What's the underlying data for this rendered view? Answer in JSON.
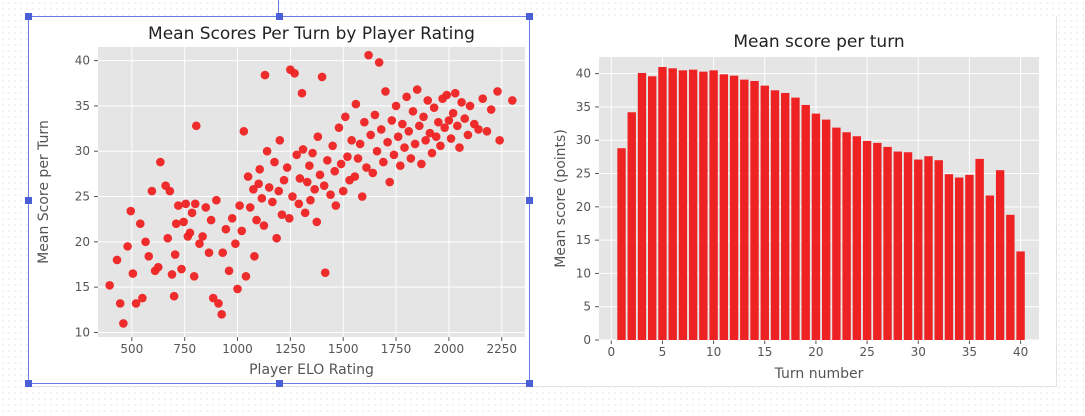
{
  "chart_data": [
    {
      "type": "scatter",
      "title": "Mean Scores Per Turn by Player Rating",
      "xlabel": "Player ELO Rating",
      "ylabel": "Mean Score per Turn",
      "xlim": [
        340,
        2360
      ],
      "ylim": [
        9.5,
        41.5
      ],
      "xticks": [
        500,
        750,
        1000,
        1250,
        1500,
        1750,
        2000,
        2250
      ],
      "yticks": [
        10,
        15,
        20,
        25,
        30,
        35,
        40
      ],
      "grid": true,
      "color": "#ee2222",
      "points": [
        [
          395,
          15.2
        ],
        [
          430,
          18.0
        ],
        [
          445,
          13.2
        ],
        [
          460,
          11.0
        ],
        [
          480,
          19.5
        ],
        [
          495,
          23.4
        ],
        [
          505,
          16.5
        ],
        [
          520,
          13.2
        ],
        [
          540,
          22.0
        ],
        [
          550,
          13.8
        ],
        [
          565,
          20.0
        ],
        [
          580,
          18.4
        ],
        [
          595,
          25.6
        ],
        [
          610,
          16.8
        ],
        [
          625,
          17.2
        ],
        [
          635,
          28.8
        ],
        [
          660,
          26.2
        ],
        [
          670,
          20.4
        ],
        [
          680,
          25.6
        ],
        [
          690,
          16.4
        ],
        [
          700,
          14.0
        ],
        [
          705,
          18.6
        ],
        [
          710,
          22.0
        ],
        [
          720,
          24.0
        ],
        [
          735,
          17.0
        ],
        [
          745,
          22.2
        ],
        [
          755,
          24.2
        ],
        [
          765,
          20.6
        ],
        [
          775,
          21.0
        ],
        [
          785,
          23.2
        ],
        [
          795,
          16.2
        ],
        [
          800,
          24.2
        ],
        [
          805,
          32.8
        ],
        [
          820,
          19.8
        ],
        [
          835,
          20.6
        ],
        [
          850,
          23.8
        ],
        [
          865,
          18.8
        ],
        [
          875,
          22.4
        ],
        [
          885,
          13.8
        ],
        [
          900,
          24.6
        ],
        [
          910,
          13.2
        ],
        [
          925,
          12.0
        ],
        [
          930,
          18.8
        ],
        [
          945,
          21.4
        ],
        [
          960,
          16.8
        ],
        [
          975,
          22.6
        ],
        [
          990,
          19.8
        ],
        [
          1000,
          14.8
        ],
        [
          1010,
          24.0
        ],
        [
          1020,
          21.2
        ],
        [
          1030,
          32.2
        ],
        [
          1040,
          16.2
        ],
        [
          1050,
          27.2
        ],
        [
          1060,
          23.8
        ],
        [
          1075,
          25.8
        ],
        [
          1080,
          18.4
        ],
        [
          1090,
          22.4
        ],
        [
          1100,
          26.4
        ],
        [
          1105,
          28.0
        ],
        [
          1115,
          24.8
        ],
        [
          1125,
          21.8
        ],
        [
          1130,
          38.4
        ],
        [
          1140,
          30.0
        ],
        [
          1150,
          26.0
        ],
        [
          1165,
          24.4
        ],
        [
          1175,
          28.8
        ],
        [
          1185,
          20.4
        ],
        [
          1195,
          25.6
        ],
        [
          1200,
          31.2
        ],
        [
          1210,
          23.0
        ],
        [
          1220,
          26.8
        ],
        [
          1235,
          28.2
        ],
        [
          1245,
          22.6
        ],
        [
          1250,
          39.0
        ],
        [
          1260,
          25.0
        ],
        [
          1270,
          38.6
        ],
        [
          1280,
          29.6
        ],
        [
          1290,
          24.2
        ],
        [
          1295,
          27.0
        ],
        [
          1305,
          36.4
        ],
        [
          1310,
          30.2
        ],
        [
          1320,
          23.2
        ],
        [
          1330,
          26.6
        ],
        [
          1340,
          28.4
        ],
        [
          1345,
          24.6
        ],
        [
          1355,
          29.8
        ],
        [
          1365,
          25.8
        ],
        [
          1375,
          22.2
        ],
        [
          1380,
          31.6
        ],
        [
          1390,
          27.4
        ],
        [
          1400,
          38.2
        ],
        [
          1410,
          26.2
        ],
        [
          1415,
          16.6
        ],
        [
          1425,
          29.0
        ],
        [
          1440,
          25.2
        ],
        [
          1450,
          30.6
        ],
        [
          1460,
          27.8
        ],
        [
          1465,
          24.0
        ],
        [
          1480,
          32.6
        ],
        [
          1490,
          28.6
        ],
        [
          1500,
          25.6
        ],
        [
          1510,
          33.8
        ],
        [
          1520,
          29.4
        ],
        [
          1530,
          26.8
        ],
        [
          1540,
          31.2
        ],
        [
          1555,
          27.2
        ],
        [
          1560,
          35.2
        ],
        [
          1570,
          29.2
        ],
        [
          1580,
          30.8
        ],
        [
          1590,
          25.0
        ],
        [
          1600,
          33.2
        ],
        [
          1610,
          28.2
        ],
        [
          1620,
          40.6
        ],
        [
          1630,
          31.8
        ],
        [
          1640,
          27.6
        ],
        [
          1650,
          34.0
        ],
        [
          1660,
          30.0
        ],
        [
          1670,
          39.8
        ],
        [
          1680,
          32.4
        ],
        [
          1690,
          28.8
        ],
        [
          1700,
          36.6
        ],
        [
          1710,
          31.0
        ],
        [
          1720,
          26.6
        ],
        [
          1730,
          33.4
        ],
        [
          1740,
          29.6
        ],
        [
          1750,
          35.0
        ],
        [
          1760,
          31.6
        ],
        [
          1770,
          28.4
        ],
        [
          1780,
          33.0
        ],
        [
          1790,
          30.4
        ],
        [
          1800,
          36.0
        ],
        [
          1810,
          32.2
        ],
        [
          1820,
          29.2
        ],
        [
          1830,
          34.4
        ],
        [
          1840,
          30.8
        ],
        [
          1850,
          36.8
        ],
        [
          1860,
          32.8
        ],
        [
          1870,
          28.6
        ],
        [
          1880,
          33.8
        ],
        [
          1890,
          31.2
        ],
        [
          1900,
          35.6
        ],
        [
          1910,
          32.0
        ],
        [
          1920,
          29.8
        ],
        [
          1930,
          34.8
        ],
        [
          1940,
          31.6
        ],
        [
          1950,
          33.2
        ],
        [
          1960,
          30.6
        ],
        [
          1970,
          35.8
        ],
        [
          1980,
          32.6
        ],
        [
          1990,
          36.2
        ],
        [
          2000,
          33.4
        ],
        [
          2010,
          31.4
        ],
        [
          2020,
          34.2
        ],
        [
          2030,
          36.4
        ],
        [
          2040,
          32.8
        ],
        [
          2050,
          30.4
        ],
        [
          2060,
          35.4
        ],
        [
          2075,
          33.6
        ],
        [
          2090,
          31.8
        ],
        [
          2100,
          35.0
        ],
        [
          2120,
          33.0
        ],
        [
          2140,
          32.4
        ],
        [
          2160,
          35.8
        ],
        [
          2180,
          32.2
        ],
        [
          2200,
          34.6
        ],
        [
          2230,
          36.6
        ],
        [
          2240,
          31.2
        ],
        [
          2300,
          35.6
        ]
      ]
    },
    {
      "type": "bar",
      "title": "Mean score per turn",
      "xlabel": "Turn number",
      "ylabel": "Mean score (points)",
      "xlim": [
        -1.2,
        41.8
      ],
      "ylim": [
        0,
        42.5
      ],
      "xticks": [
        0,
        5,
        10,
        15,
        20,
        25,
        30,
        35,
        40
      ],
      "yticks": [
        0,
        5,
        10,
        15,
        20,
        25,
        30,
        35,
        40
      ],
      "grid": true,
      "color": "#ee2222",
      "categories": [
        1,
        2,
        3,
        4,
        5,
        6,
        7,
        8,
        9,
        10,
        11,
        12,
        13,
        14,
        15,
        16,
        17,
        18,
        19,
        20,
        21,
        22,
        23,
        24,
        25,
        26,
        27,
        28,
        29,
        30,
        31,
        32,
        33,
        34,
        35,
        36,
        37,
        38,
        39,
        40
      ],
      "values": [
        28.8,
        34.2,
        40.1,
        39.6,
        41.0,
        40.8,
        40.5,
        40.6,
        40.3,
        40.5,
        39.9,
        39.7,
        39.1,
        38.9,
        38.2,
        37.5,
        37.1,
        36.4,
        35.3,
        34.0,
        33.1,
        31.9,
        31.2,
        30.6,
        29.9,
        29.6,
        29.0,
        28.3,
        28.2,
        27.1,
        27.6,
        27.0,
        24.9,
        24.4,
        24.8,
        27.2,
        21.7,
        25.5,
        18.8,
        13.3
      ]
    }
  ]
}
